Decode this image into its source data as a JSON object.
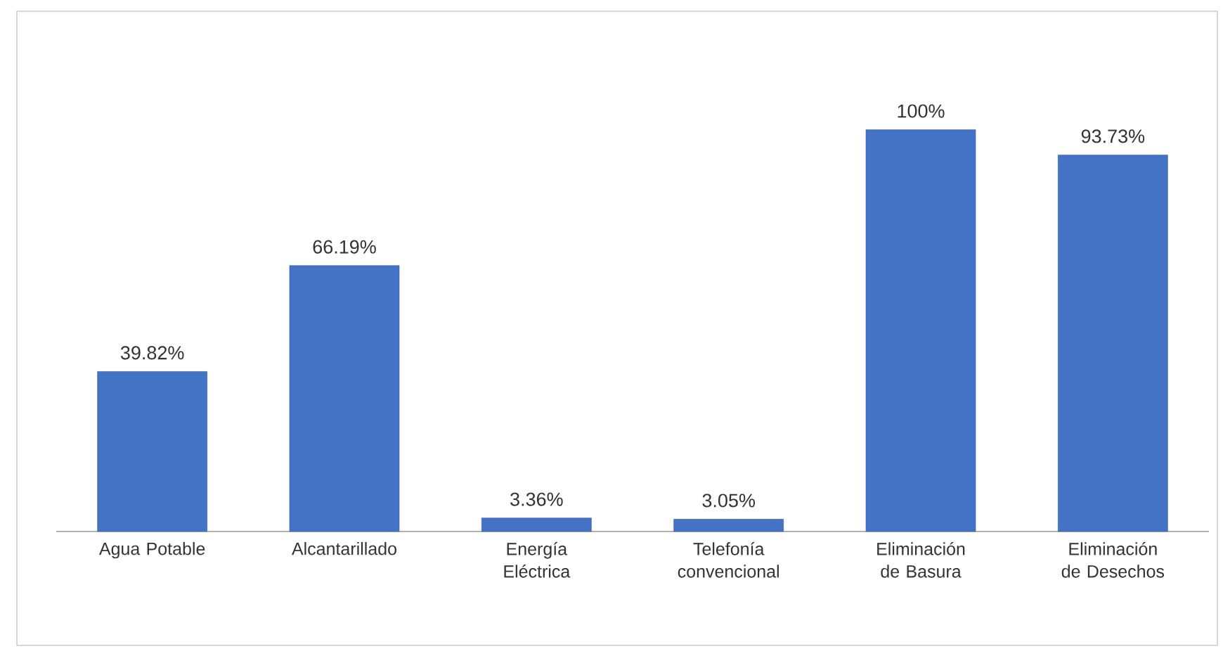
{
  "chart_data": {
    "type": "bar",
    "categories": [
      "Agua Potable",
      "Alcantarillado",
      "Energía Eléctrica",
      "Telefonía convencional",
      "Eliminación de Basura",
      "Eliminación de Desechos"
    ],
    "values": [
      39.82,
      66.19,
      3.36,
      3.05,
      100,
      93.73
    ],
    "value_labels": [
      "39.82%",
      "66.19%",
      "3.36%",
      "3.05%",
      "100%",
      "93.73%"
    ],
    "color": "#4472c4"
  }
}
